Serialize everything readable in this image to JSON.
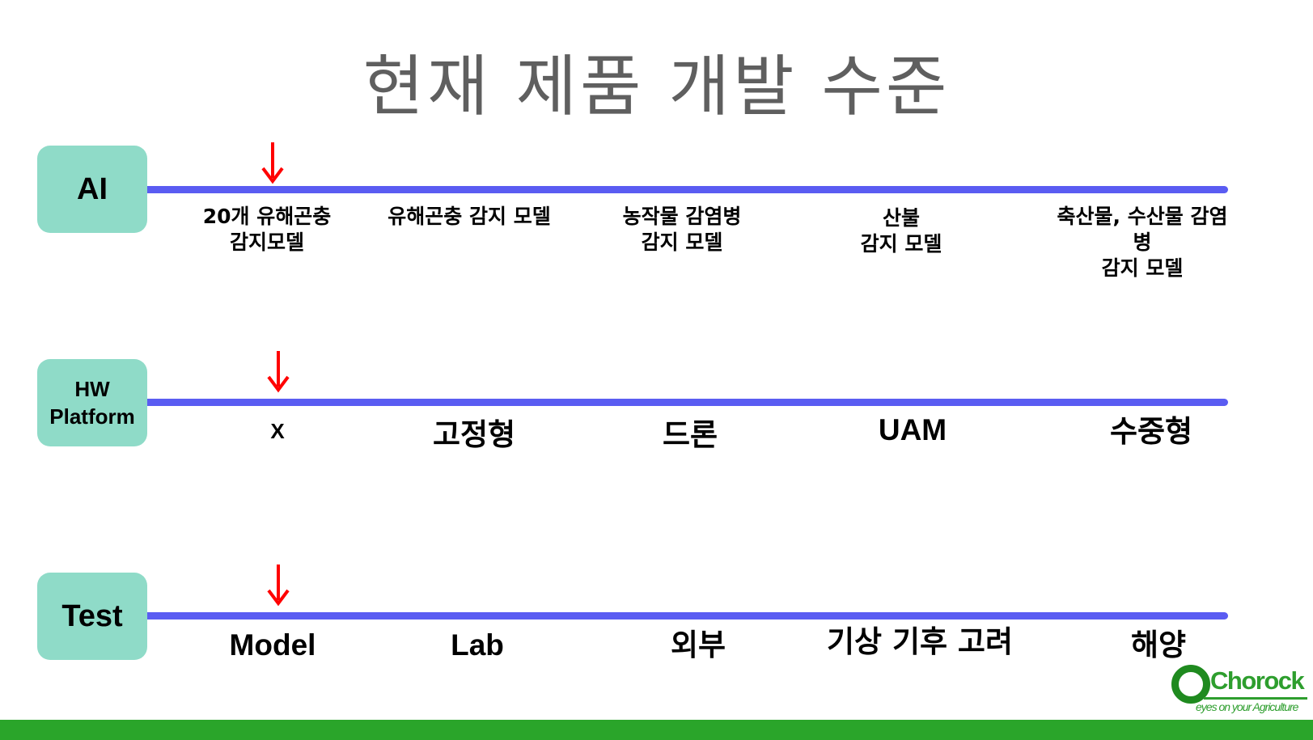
{
  "title": "현재 제품 개발 수준",
  "colors": {
    "title": "#5f5f5f",
    "track_label_bg": "#8fdbc8",
    "track_line": "#5a5cf2",
    "arrow": "#ff0000",
    "footer_bar": "#2aa52a",
    "logo_green": "#2e9e2e"
  },
  "tracks": {
    "ai": {
      "label": "AI",
      "current_stage": 1,
      "stages": [
        "20개 유해곤충\n감지모델",
        "유해곤충 감지 모델",
        "농작물 감염병\n감지 모델",
        "산불\n감지 모델",
        "축산물, 수산물 감염병\n감지 모델"
      ]
    },
    "hw": {
      "label": "HW\nPlatform",
      "current_stage": 1,
      "stages": [
        "X",
        "고정형",
        "드론",
        "UAM",
        "수중형"
      ]
    },
    "test": {
      "label": "Test",
      "current_stage": 1,
      "stages": [
        "Model",
        "Lab",
        "외부",
        "기상 기후 고려",
        "해양"
      ]
    }
  },
  "logo": {
    "name": "Chorock",
    "tagline": "eyes on your Agriculture"
  }
}
